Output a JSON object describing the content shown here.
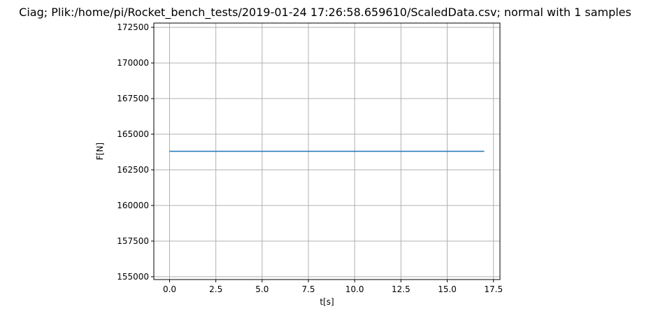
{
  "chart_data": {
    "type": "line",
    "title": "Ciag; Plik:/home/pi/Rocket_bench_tests/2019-01-24 17:26:58.659610/ScaledData.csv; normal with 1 samples",
    "xlabel": "t[s]",
    "ylabel": "F[N]",
    "xlim": [
      -0.85,
      17.85
    ],
    "ylim": [
      154800,
      172800
    ],
    "xticks": [
      0.0,
      2.5,
      5.0,
      7.5,
      10.0,
      12.5,
      15.0,
      17.5
    ],
    "xtick_labels": [
      "0.0",
      "2.5",
      "5.0",
      "7.5",
      "10.0",
      "12.5",
      "15.0",
      "17.5"
    ],
    "yticks": [
      155000,
      157500,
      160000,
      162500,
      165000,
      167500,
      170000,
      172500
    ],
    "ytick_labels": [
      "155000",
      "157500",
      "160000",
      "162500",
      "165000",
      "167500",
      "170000",
      "172500"
    ],
    "grid": true,
    "series": [
      {
        "x": [
          0.0,
          17.0
        ],
        "y": [
          163800,
          163800
        ],
        "color": "#1f77b4"
      }
    ]
  }
}
